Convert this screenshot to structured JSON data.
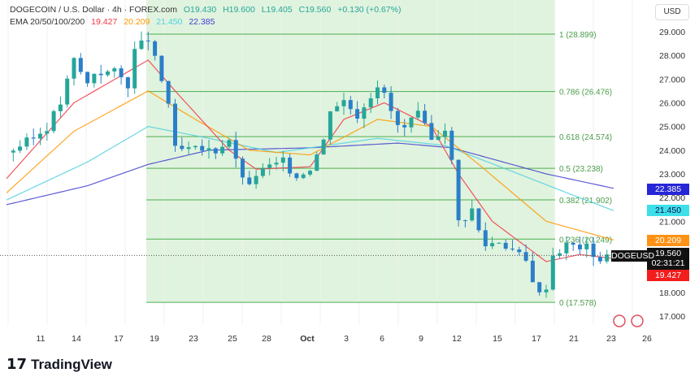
{
  "header": {
    "symbol": "DOGECOIN / U.S. Dollar · 4h · FOREX.com",
    "open": "O19.430",
    "high": "H19.600",
    "low": "L19.405",
    "close": "C19.560",
    "change": "+0.130 (+0.67%)",
    "ema_label": "EMA 20/50/100/200",
    "ema20": "19.427",
    "ema50": "20.209",
    "ema100": "21.450",
    "ema200": "22.385"
  },
  "currency": "USD",
  "tags": {
    "ema200": "22.385",
    "ema100": "21.450",
    "ema50": "20.209",
    "price": "19.560",
    "countdown": "02:31:21",
    "ema20": "19.427",
    "symbol": "DOGEUSD"
  },
  "brand": "TradingView",
  "colors": {
    "up": "#26a69a",
    "down": "#2a7fc8",
    "ema20": "#f23645",
    "ema50": "#ff9800",
    "ema100": "#4dd0e1",
    "ema200": "#3f3fcf",
    "fib": "#4caf50"
  },
  "chart_data": {
    "type": "candlestick",
    "title": "DOGECOIN / U.S. Dollar · 4h · FOREX.com",
    "ylim": [
      16.4,
      29.6
    ],
    "y_ticks": [
      "29.000",
      "28.000",
      "27.000",
      "26.000",
      "25.000",
      "24.000",
      "23.000",
      "22.000",
      "21.000",
      "18.000",
      "17.000"
    ],
    "x_ticks": [
      "11",
      "14",
      "17",
      "19",
      "23",
      "25",
      "28",
      "Oct",
      "3",
      "6",
      "9",
      "12",
      "15",
      "17",
      "21",
      "23",
      "26"
    ],
    "fib_levels": [
      {
        "label": "1 (28.899)",
        "v": 28.899
      },
      {
        "label": "0.786 (26.476)",
        "v": 26.476
      },
      {
        "label": "0.618 (24.574)",
        "v": 24.574
      },
      {
        "label": "0.5 (23.238)",
        "v": 23.238
      },
      {
        "label": "0.382 (21.902)",
        "v": 21.902
      },
      {
        "label": "0.236 (20.249)",
        "v": 20.249
      },
      {
        "label": "0 (17.578)",
        "v": 17.578
      }
    ],
    "price_path": [
      [
        0,
        23.9
      ],
      [
        4,
        24.5
      ],
      [
        6,
        25
      ],
      [
        8,
        26
      ],
      [
        10,
        27.8
      ],
      [
        12,
        26.8
      ],
      [
        13,
        27.3
      ],
      [
        16,
        27.3
      ],
      [
        18,
        26.8
      ],
      [
        19,
        28.2
      ],
      [
        21,
        28.7
      ],
      [
        22,
        27.8
      ],
      [
        24,
        26
      ],
      [
        25,
        24
      ],
      [
        28,
        24
      ],
      [
        31,
        24
      ],
      [
        33,
        24.5
      ],
      [
        34,
        23.5
      ],
      [
        36,
        22.4
      ],
      [
        37,
        23
      ],
      [
        39,
        23.3
      ],
      [
        41,
        23.5
      ],
      [
        43,
        22.9
      ],
      [
        45,
        23.3
      ],
      [
        47,
        24.4
      ],
      [
        48,
        25.8
      ],
      [
        50,
        26.1
      ],
      [
        52,
        25.5
      ],
      [
        55,
        26.8
      ],
      [
        56,
        26.3
      ],
      [
        58,
        25
      ],
      [
        59,
        24.9
      ],
      [
        61,
        25.5
      ],
      [
        63,
        24.4
      ],
      [
        65,
        25
      ],
      [
        66,
        23.5
      ],
      [
        67,
        21
      ],
      [
        68,
        21.2
      ],
      [
        69,
        21.5
      ],
      [
        70,
        20.6
      ],
      [
        71,
        20
      ],
      [
        73,
        20.2
      ],
      [
        75,
        19.8
      ],
      [
        77,
        19.3
      ],
      [
        79,
        17.9
      ],
      [
        80,
        18.3
      ],
      [
        81,
        19.6
      ],
      [
        83,
        20
      ],
      [
        86,
        19.9
      ],
      [
        88,
        19.4
      ],
      [
        90,
        19.56
      ]
    ],
    "ema20": [
      [
        0,
        22.8
      ],
      [
        10,
        26
      ],
      [
        21,
        27.8
      ],
      [
        25,
        26.5
      ],
      [
        33,
        24
      ],
      [
        37,
        23.2
      ],
      [
        45,
        23.3
      ],
      [
        50,
        25.3
      ],
      [
        56,
        26
      ],
      [
        63,
        25
      ],
      [
        67,
        23
      ],
      [
        72,
        21
      ],
      [
        80,
        19.3
      ],
      [
        85,
        19.6
      ],
      [
        90,
        19.43
      ]
    ],
    "ema50": [
      [
        0,
        22.2
      ],
      [
        10,
        24.8
      ],
      [
        21,
        26.5
      ],
      [
        28,
        25.3
      ],
      [
        36,
        24
      ],
      [
        45,
        23.8
      ],
      [
        55,
        25.3
      ],
      [
        63,
        25
      ],
      [
        70,
        23.4
      ],
      [
        80,
        21
      ],
      [
        90,
        20.21
      ]
    ],
    "ema100": [
      [
        0,
        21.9
      ],
      [
        12,
        23.5
      ],
      [
        21,
        25
      ],
      [
        30,
        24.5
      ],
      [
        40,
        23.9
      ],
      [
        55,
        24.5
      ],
      [
        65,
        24.2
      ],
      [
        75,
        23.1
      ],
      [
        84,
        22.1
      ],
      [
        90,
        21.45
      ]
    ],
    "ema200": [
      [
        0,
        21.7
      ],
      [
        12,
        22.5
      ],
      [
        21,
        23.4
      ],
      [
        30,
        24
      ],
      [
        45,
        24.1
      ],
      [
        58,
        24.3
      ],
      [
        66,
        24.1
      ],
      [
        80,
        23
      ],
      [
        90,
        22.39
      ]
    ]
  }
}
